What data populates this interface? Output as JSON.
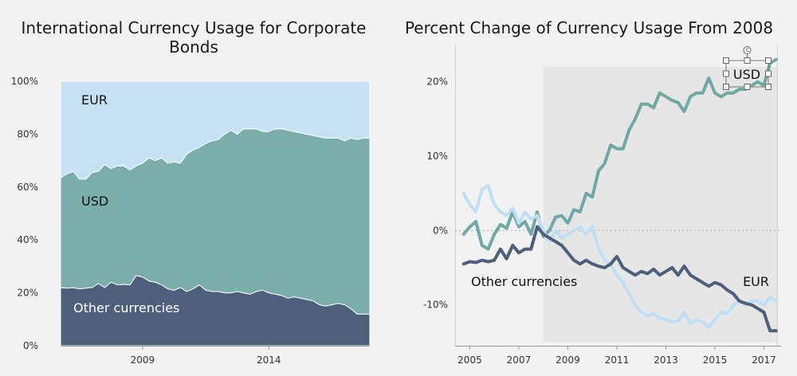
{
  "chart_data": [
    {
      "type": "area",
      "stacked": true,
      "normalized": true,
      "title": "International Currency Usage for Corporate Bonds",
      "title_lines": [
        "International Currency Usage for Corporate",
        "Bonds"
      ],
      "xlim": [
        2005.75,
        2018.0
      ],
      "ylim": [
        0,
        100
      ],
      "y_ticks": [
        0,
        20,
        40,
        60,
        80,
        100
      ],
      "y_tick_labels": [
        "0%",
        "20%",
        "40%",
        "60%",
        "80%",
        "100%"
      ],
      "x_tick_labels": [
        "2009",
        "2014"
      ],
      "x_tick_values": [
        2009,
        2014
      ],
      "grid": false,
      "legend": "inline labels",
      "x": [
        2005.75,
        2006.0,
        2006.25,
        2006.5,
        2006.75,
        2007.0,
        2007.25,
        2007.5,
        2007.75,
        2008.0,
        2008.25,
        2008.5,
        2008.75,
        2009.0,
        2009.25,
        2009.5,
        2009.75,
        2010.0,
        2010.25,
        2010.5,
        2010.75,
        2011.0,
        2011.25,
        2011.5,
        2011.75,
        2012.0,
        2012.25,
        2012.5,
        2012.75,
        2013.0,
        2013.25,
        2013.5,
        2013.75,
        2014.0,
        2014.25,
        2014.5,
        2014.75,
        2015.0,
        2015.25,
        2015.5,
        2015.75,
        2016.0,
        2016.25,
        2016.5,
        2016.75,
        2017.0,
        2017.25,
        2017.5,
        2017.75,
        2018.0
      ],
      "series": [
        {
          "name": "Other currencies",
          "label": "Other currencies",
          "color": "#4e5f7b",
          "label_style": "light",
          "values": [
            22.0,
            21.8,
            22.0,
            21.5,
            21.8,
            22.0,
            23.5,
            22.0,
            24.0,
            23.0,
            23.2,
            23.0,
            26.5,
            26.0,
            24.5,
            24.0,
            23.0,
            21.5,
            21.0,
            22.0,
            20.5,
            21.5,
            23.0,
            21.0,
            20.5,
            20.5,
            20.0,
            20.0,
            20.5,
            20.0,
            19.5,
            20.5,
            21.0,
            20.0,
            19.5,
            19.0,
            18.0,
            18.5,
            18.0,
            17.5,
            17.0,
            15.5,
            15.0,
            15.5,
            16.0,
            15.5,
            14.0,
            12.0,
            12.0,
            12.0
          ]
        },
        {
          "name": "USD",
          "label": "USD",
          "color": "#7aaeab",
          "label_style": "dark",
          "values": [
            41.5,
            43.2,
            44.0,
            41.5,
            41.2,
            43.5,
            42.5,
            46.5,
            43.0,
            45.0,
            44.8,
            43.5,
            41.5,
            43.0,
            46.5,
            46.0,
            48.0,
            47.5,
            48.5,
            47.0,
            52.0,
            52.5,
            52.0,
            55.5,
            57.0,
            57.5,
            60.0,
            61.5,
            59.5,
            62.0,
            62.5,
            61.5,
            60.0,
            61.0,
            62.5,
            63.0,
            63.5,
            62.5,
            62.5,
            62.5,
            62.5,
            63.5,
            63.5,
            63.0,
            62.5,
            62.0,
            64.5,
            66.0,
            66.5,
            66.5
          ]
        },
        {
          "name": "EUR",
          "label": "EUR",
          "color": "#c5e1f3",
          "label_style": "dark",
          "values": [
            36.5,
            35.0,
            34.0,
            37.0,
            37.0,
            34.5,
            34.0,
            31.5,
            33.0,
            32.0,
            32.0,
            33.5,
            32.0,
            31.0,
            29.0,
            30.0,
            29.0,
            31.0,
            30.5,
            31.0,
            27.5,
            26.0,
            25.0,
            23.5,
            22.5,
            22.0,
            20.0,
            18.5,
            20.0,
            18.0,
            18.0,
            18.0,
            19.0,
            19.0,
            18.0,
            18.0,
            18.5,
            19.0,
            19.5,
            20.0,
            20.5,
            21.0,
            21.5,
            21.5,
            21.5,
            22.5,
            21.5,
            22.0,
            21.5,
            21.5
          ]
        }
      ]
    },
    {
      "type": "line",
      "title": "Percent Change of Currency Usage From 2008",
      "xlim": [
        2004.4,
        2017.7
      ],
      "ylim": [
        -15.5,
        25
      ],
      "y_ticks": [
        -10,
        0,
        10,
        20
      ],
      "y_tick_labels": [
        "-10%",
        "0%",
        "10%",
        "20%"
      ],
      "x_tick_values": [
        2005,
        2007,
        2009,
        2011,
        2013,
        2015,
        2017
      ],
      "x_tick_labels": [
        "2005",
        "2007",
        "2009",
        "2011",
        "2013",
        "2015",
        "2017"
      ],
      "zero_line": true,
      "grid": false,
      "legend": "inline labels",
      "shaded_from": 2008,
      "series": [
        {
          "name": "USD",
          "label": "USD",
          "color": "#6ea9a4",
          "x": [
            2004.75,
            2005.0,
            2005.25,
            2005.5,
            2005.75,
            2006.0,
            2006.25,
            2006.5,
            2006.75,
            2007.0,
            2007.25,
            2007.5,
            2007.75,
            2008.0,
            2008.25,
            2008.5,
            2008.75,
            2009.0,
            2009.25,
            2009.5,
            2009.75,
            2010.0,
            2010.25,
            2010.5,
            2010.75,
            2011.0,
            2011.25,
            2011.5,
            2011.75,
            2012.0,
            2012.25,
            2012.5,
            2012.75,
            2013.0,
            2013.25,
            2013.5,
            2013.75,
            2014.0,
            2014.25,
            2014.5,
            2014.75,
            2015.0,
            2015.25,
            2015.5,
            2015.75,
            2016.0,
            2016.25,
            2016.5,
            2016.75,
            2017.0,
            2017.25,
            2017.5
          ],
          "values": [
            -0.5,
            0.5,
            1.2,
            -2.0,
            -2.5,
            -0.5,
            0.8,
            0.3,
            2.5,
            0.5,
            1.2,
            -0.5,
            2.5,
            -0.8,
            0.0,
            1.8,
            2.0,
            1.0,
            2.8,
            2.5,
            5.0,
            4.5,
            8.0,
            9.0,
            11.5,
            11.0,
            11.0,
            13.5,
            15.0,
            17.0,
            17.0,
            16.5,
            18.5,
            18.0,
            17.5,
            17.2,
            16.0,
            18.0,
            18.5,
            18.5,
            20.5,
            18.5,
            18.0,
            18.5,
            18.5,
            19.0,
            19.0,
            19.5,
            20.0,
            19.5,
            22.5,
            23.0
          ]
        },
        {
          "name": "EUR",
          "label": "EUR",
          "color": "#bfdff4",
          "x": [
            2004.75,
            2005.0,
            2005.25,
            2005.5,
            2005.75,
            2006.0,
            2006.25,
            2006.5,
            2006.75,
            2007.0,
            2007.25,
            2007.5,
            2007.75,
            2008.0,
            2008.25,
            2008.5,
            2008.75,
            2009.0,
            2009.25,
            2009.5,
            2009.75,
            2010.0,
            2010.25,
            2010.5,
            2010.75,
            2011.0,
            2011.25,
            2011.5,
            2011.75,
            2012.0,
            2012.25,
            2012.5,
            2012.75,
            2013.0,
            2013.25,
            2013.5,
            2013.75,
            2014.0,
            2014.25,
            2014.5,
            2014.75,
            2015.0,
            2015.25,
            2015.5,
            2015.75,
            2016.0,
            2016.25,
            2016.5,
            2016.75,
            2017.0,
            2017.25,
            2017.5
          ],
          "values": [
            5.0,
            3.5,
            2.5,
            5.5,
            6.0,
            3.5,
            2.5,
            2.0,
            3.0,
            1.0,
            2.5,
            1.5,
            2.0,
            0.0,
            -1.5,
            0.0,
            -1.0,
            -0.5,
            0.0,
            0.5,
            -0.5,
            0.5,
            -2.5,
            -4.0,
            -4.5,
            -6.0,
            -7.0,
            -8.5,
            -10.0,
            -11.0,
            -11.5,
            -11.2,
            -11.8,
            -12.0,
            -12.3,
            -12.2,
            -11.0,
            -12.5,
            -12.0,
            -12.3,
            -13.0,
            -12.0,
            -11.0,
            -11.2,
            -10.0,
            -9.5,
            -10.0,
            -9.5,
            -9.5,
            -10.0,
            -9.0,
            -9.5
          ]
        },
        {
          "name": "Other currencies",
          "label": "Other currencies",
          "color": "#4e5f7b",
          "x": [
            2004.75,
            2005.0,
            2005.25,
            2005.5,
            2005.75,
            2006.0,
            2006.25,
            2006.5,
            2006.75,
            2007.0,
            2007.25,
            2007.5,
            2007.75,
            2008.0,
            2008.25,
            2008.5,
            2008.75,
            2009.0,
            2009.25,
            2009.5,
            2009.75,
            2010.0,
            2010.25,
            2010.5,
            2010.75,
            2011.0,
            2011.25,
            2011.5,
            2011.75,
            2012.0,
            2012.25,
            2012.5,
            2012.75,
            2013.0,
            2013.25,
            2013.5,
            2013.75,
            2014.0,
            2014.25,
            2014.5,
            2014.75,
            2015.0,
            2015.25,
            2015.5,
            2015.75,
            2016.0,
            2016.25,
            2016.5,
            2016.75,
            2017.0,
            2017.25,
            2017.5
          ],
          "values": [
            -4.5,
            -4.2,
            -4.3,
            -4.0,
            -4.2,
            -4.0,
            -2.5,
            -3.8,
            -2.0,
            -3.0,
            -2.5,
            -2.5,
            0.5,
            -0.5,
            -1.0,
            -1.5,
            -2.0,
            -3.0,
            -4.0,
            -4.5,
            -4.0,
            -4.5,
            -4.8,
            -5.0,
            -4.5,
            -3.5,
            -5.0,
            -5.5,
            -6.0,
            -5.5,
            -5.8,
            -5.2,
            -6.0,
            -5.5,
            -5.0,
            -6.0,
            -4.8,
            -6.0,
            -6.5,
            -7.0,
            -7.5,
            -7.0,
            -7.3,
            -8.0,
            -8.5,
            -9.5,
            -9.8,
            -10.0,
            -10.5,
            -11.0,
            -13.5,
            -13.5
          ]
        }
      ]
    }
  ]
}
